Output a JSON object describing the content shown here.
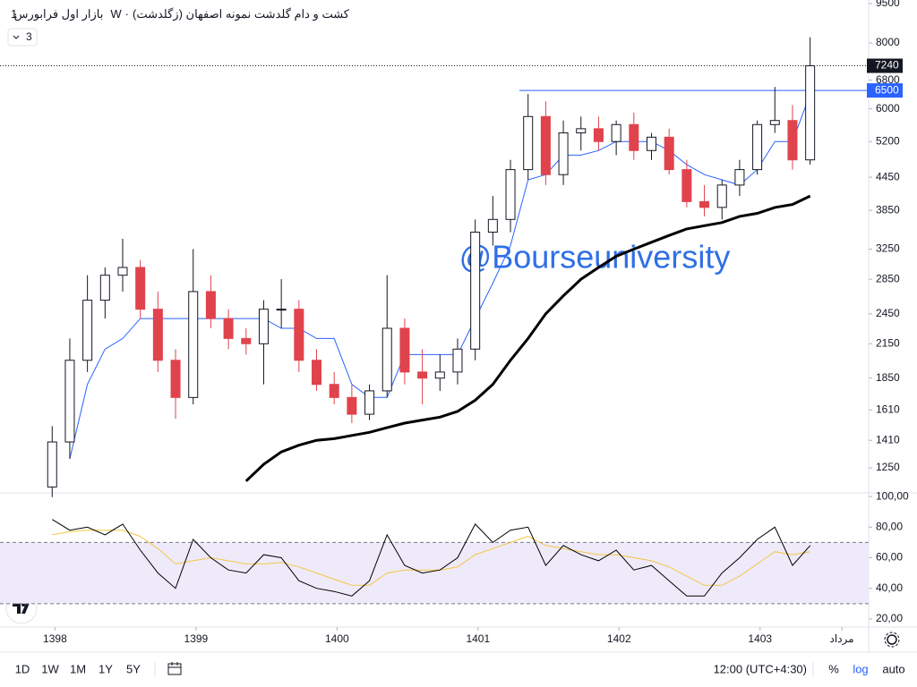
{
  "header": {
    "exchange": "بازار اول فرابورس",
    "interval": "1W",
    "symbol": "کشت و دام گلدشت نمونه اصفهان (زگلدشت)",
    "badge": "3"
  },
  "chart_data": [
    {
      "type": "candlestick",
      "log": true,
      "grid": false,
      "annotation": "@Bourseuniversity",
      "annotation_color": "#2f6fe6",
      "up_color": "#ffffff",
      "down_color": "#e0434c",
      "xlim": [
        1397.61,
        1403.77
      ],
      "ylim": [
        1125,
        9650
      ],
      "yticks": [
        9500,
        8000,
        6800,
        6000,
        5200,
        4450,
        3850,
        3250,
        2850,
        2450,
        2150,
        1850,
        1610,
        1410,
        1250
      ],
      "level": 6500,
      "level_color": "#2962ff",
      "last": 7240,
      "x": [
        1397.98,
        1398.105,
        1398.23,
        1398.355,
        1398.48,
        1398.605,
        1398.73,
        1398.855,
        1398.98,
        1399.105,
        1399.23,
        1399.355,
        1399.48,
        1399.605,
        1399.73,
        1399.855,
        1399.98,
        1400.105,
        1400.23,
        1400.355,
        1400.48,
        1400.605,
        1400.73,
        1400.855,
        1400.98,
        1401.105,
        1401.23,
        1401.355,
        1401.48,
        1401.605,
        1401.73,
        1401.855,
        1401.98,
        1402.105,
        1402.23,
        1402.355,
        1402.48,
        1402.605,
        1402.73,
        1402.855,
        1402.98,
        1403.105,
        1403.23,
        1403.355
      ],
      "open": [
        1150,
        1400,
        2000,
        2600,
        2900,
        3000,
        2500,
        2000,
        1700,
        2700,
        2400,
        2200,
        2150,
        2500,
        2500,
        2000,
        1800,
        1700,
        1580,
        1750,
        2300,
        1900,
        1850,
        1900,
        2100,
        3500,
        3700,
        4600,
        5800,
        4500,
        5400,
        5500,
        5200,
        5600,
        5000,
        5300,
        4600,
        4000,
        3900,
        4300,
        4600,
        5600,
        5700,
        4800
      ],
      "high": [
        1500,
        2200,
        2900,
        3000,
        3400,
        3100,
        2700,
        2100,
        3250,
        2900,
        2500,
        2300,
        2600,
        2850,
        2600,
        2100,
        1900,
        1800,
        1800,
        2900,
        2400,
        2100,
        2050,
        2200,
        3700,
        4100,
        4800,
        6400,
        6200,
        5700,
        5800,
        5800,
        5700,
        5900,
        5400,
        5500,
        4800,
        4300,
        4400,
        4800,
        5700,
        6600,
        6100,
        8200
      ],
      "low": [
        1100,
        1300,
        1900,
        2400,
        2700,
        2400,
        1900,
        1550,
        1650,
        2300,
        2100,
        2050,
        1800,
        2300,
        1900,
        1750,
        1650,
        1520,
        1540,
        1700,
        1800,
        1650,
        1750,
        1800,
        2000,
        3300,
        3500,
        4400,
        4300,
        4300,
        5000,
        5000,
        4900,
        4800,
        4800,
        4500,
        3900,
        3750,
        3700,
        4100,
        4500,
        5400,
        4600,
        4700
      ],
      "close": [
        1400,
        2000,
        2600,
        2900,
        3000,
        2500,
        2000,
        1700,
        2700,
        2400,
        2200,
        2150,
        2500,
        2500,
        2000,
        1800,
        1700,
        1580,
        1750,
        2300,
        1900,
        1850,
        1900,
        2100,
        3500,
        3700,
        4600,
        5800,
        4500,
        5400,
        5500,
        5200,
        5600,
        5000,
        5300,
        4600,
        4000,
        3900,
        4300,
        4600,
        5600,
        5700,
        4800,
        7240
      ],
      "overlays": [
        {
          "color": "#000000",
          "width": 3,
          "values": [
            null,
            null,
            null,
            null,
            null,
            null,
            null,
            null,
            null,
            null,
            null,
            1180,
            1270,
            1340,
            1380,
            1410,
            1420,
            1440,
            1460,
            1490,
            1520,
            1540,
            1560,
            1600,
            1680,
            1800,
            2000,
            2200,
            2450,
            2650,
            2850,
            3000,
            3150,
            3250,
            3350,
            3450,
            3550,
            3600,
            3650,
            3750,
            3800,
            3900,
            3950,
            4100
          ]
        },
        {
          "color": "#2962ff",
          "width": 1,
          "values": [
            null,
            1300,
            1800,
            2100,
            2200,
            2400,
            2400,
            2400,
            2400,
            2400,
            2400,
            2400,
            2400,
            2300,
            2300,
            2200,
            2200,
            1800,
            1700,
            1700,
            2050,
            2050,
            2050,
            2050,
            2400,
            2800,
            3300,
            4400,
            4500,
            4900,
            4900,
            5000,
            5200,
            5200,
            5200,
            5000,
            4700,
            4500,
            4400,
            4300,
            4600,
            5200,
            5200,
            6400
          ]
        }
      ]
    },
    {
      "type": "line",
      "xlim": [
        1397.61,
        1403.77
      ],
      "ylim": [
        15.3,
        101.8
      ],
      "yticks": [
        {
          "value": 100,
          "label": "100,00"
        },
        {
          "value": 80,
          "label": "80,00"
        },
        {
          "value": 60,
          "label": "60,00"
        },
        {
          "value": 40,
          "label": "40,00"
        },
        {
          "value": 20,
          "label": "20,00"
        }
      ],
      "band": [
        30,
        70
      ],
      "band_color": "#efeafa",
      "xticks": [
        1398,
        1399,
        1400,
        1401,
        1402,
        1403,
        {
          "value": 1403.58,
          "label": "مرداد"
        }
      ],
      "x": [
        1397.98,
        1398.105,
        1398.23,
        1398.355,
        1398.48,
        1398.605,
        1398.73,
        1398.855,
        1398.98,
        1399.105,
        1399.23,
        1399.355,
        1399.48,
        1399.605,
        1399.73,
        1399.855,
        1399.98,
        1400.105,
        1400.23,
        1400.355,
        1400.48,
        1400.605,
        1400.73,
        1400.855,
        1400.98,
        1401.105,
        1401.23,
        1401.355,
        1401.48,
        1401.605,
        1401.73,
        1401.855,
        1401.98,
        1402.105,
        1402.23,
        1402.355,
        1402.48,
        1402.605,
        1402.73,
        1402.855,
        1402.98,
        1403.105,
        1403.23,
        1403.355
      ],
      "lines": [
        {
          "color": "#000000",
          "values": [
            85,
            78,
            80,
            75,
            82,
            65,
            50,
            40,
            72,
            60,
            52,
            50,
            62,
            60,
            45,
            40,
            38,
            35,
            45,
            75,
            55,
            50,
            52,
            60,
            82,
            70,
            78,
            80,
            55,
            68,
            62,
            58,
            65,
            52,
            55,
            45,
            35,
            35,
            50,
            60,
            72,
            80,
            55,
            68
          ]
        },
        {
          "color": "#f2c744",
          "values": [
            75,
            77,
            78,
            78,
            78,
            74,
            66,
            56,
            58,
            60,
            58,
            56,
            56,
            57,
            54,
            50,
            46,
            42,
            42,
            50,
            52,
            52,
            52,
            54,
            62,
            66,
            70,
            74,
            68,
            66,
            64,
            62,
            62,
            60,
            58,
            54,
            48,
            42,
            42,
            48,
            56,
            64,
            62,
            64
          ]
        }
      ]
    }
  ],
  "toolbar": {
    "ranges": [
      "1D",
      "1W",
      "1M",
      "1Y",
      "5Y"
    ],
    "time": "12:00 (UTC+4:30)",
    "percent": "%",
    "log": "log",
    "auto": "auto"
  }
}
